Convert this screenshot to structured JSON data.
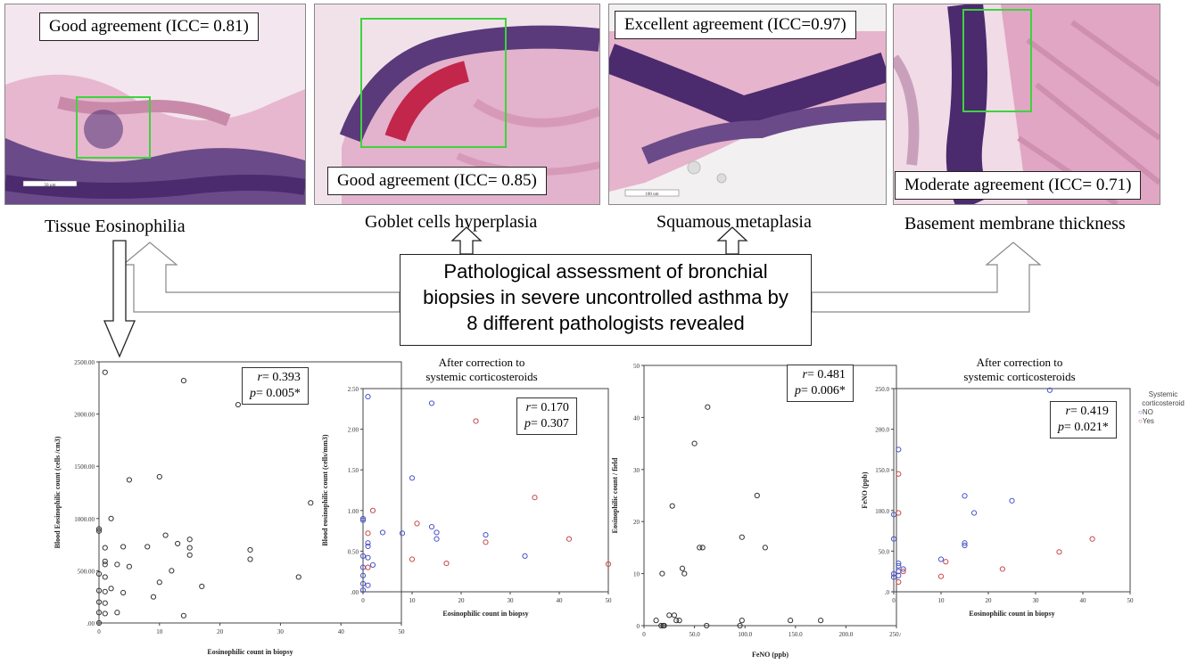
{
  "panels": [
    {
      "icc_label": "Good agreement (ICC= 0.81)",
      "caption": "Tissue Eosinophilia",
      "scale_label": "50 µm"
    },
    {
      "icc_label": "Good agreement (ICC= 0.85)",
      "caption": "Goblet cells hyperplasia"
    },
    {
      "icc_label": "Excellent agreement (ICC=0.97)",
      "caption": "Squamous metaplasia",
      "scale_label": "100 um"
    },
    {
      "icc_label": "Moderate agreement (ICC= 0.71)",
      "caption": "Basement membrane thickness"
    }
  ],
  "center_box": {
    "lines": [
      "Pathological assessment of bronchial",
      "biopsies in severe uncontrolled asthma by",
      "8 different pathologists revealed"
    ]
  },
  "plot1": {
    "stats": {
      "r_label": "r",
      "r_value": "= 0.393",
      "p_label": "p",
      "p_value": "= 0.005*"
    }
  },
  "plot2": {
    "title_lines": [
      "After correction to",
      "systemic corticosteroids"
    ],
    "stats": {
      "r_label": "r",
      "r_value": "= 0.170",
      "p_label": "p",
      "p_value": "= 0.307"
    }
  },
  "plot3": {
    "stats": {
      "r_label": "r",
      "r_value": "= 0.481",
      "p_label": "p",
      "p_value": "= 0.006*"
    }
  },
  "plot4": {
    "title_lines": [
      "After correction to",
      "systemic corticosteroids"
    ],
    "stats": {
      "r_label": "r",
      "r_value": "= 0.419",
      "p_label": "p",
      "p_value": "= 0.021*"
    },
    "legend": {
      "title_lines": [
        "Systemic",
        "corticosteroid"
      ],
      "items": [
        "NO",
        "Yes"
      ]
    }
  },
  "colors": {
    "frame_green": "#3dd43d",
    "series_no": "#4a55c8",
    "series_yes": "#c84a4a",
    "tissue_pink": "#e7b7cf",
    "nuclei_purple": "#4b2a6e"
  },
  "chart_data": [
    {
      "type": "scatter",
      "xlabel": "Eosinophilic count in biopsy",
      "ylabel": "Blood Eosinophilic count (cells /cm3)",
      "xlim": [
        0,
        50
      ],
      "ylim": [
        0,
        2500
      ],
      "xticks": [
        "0",
        "10",
        "20",
        "30",
        "40",
        "50"
      ],
      "yticks": [
        ".00",
        "500.00",
        "1000.00",
        "1500.00",
        "2000.00",
        "2500.00"
      ],
      "series": [
        {
          "values": [
            [
              1,
              2400
            ],
            [
              14,
              2320
            ],
            [
              23,
              2090
            ],
            [
              5,
              1370
            ],
            [
              10,
              1400
            ],
            [
              35,
              1150
            ],
            [
              2,
              1000
            ],
            [
              0,
              900
            ],
            [
              0,
              880
            ],
            [
              4,
              730
            ],
            [
              8,
              730
            ],
            [
              11,
              840
            ],
            [
              15,
              800
            ],
            [
              15,
              720
            ],
            [
              25,
              700
            ],
            [
              1,
              720
            ],
            [
              1,
              590
            ],
            [
              1,
              560
            ],
            [
              3,
              560
            ],
            [
              5,
              540
            ],
            [
              13,
              760
            ],
            [
              15,
              650
            ],
            [
              25,
              610
            ],
            [
              12,
              500
            ],
            [
              0,
              470
            ],
            [
              1,
              440
            ],
            [
              10,
              390
            ],
            [
              17,
              350
            ],
            [
              33,
              440
            ],
            [
              0,
              310
            ],
            [
              1,
              300
            ],
            [
              4,
              290
            ],
            [
              2,
              330
            ],
            [
              9,
              250
            ],
            [
              0,
              200
            ],
            [
              1,
              190
            ],
            [
              0,
              100
            ],
            [
              1,
              90
            ],
            [
              3,
              100
            ],
            [
              0,
              0
            ],
            [
              14,
              70
            ]
          ]
        }
      ]
    },
    {
      "type": "scatter",
      "xlabel": "Eosinophilic count in biopsy",
      "ylabel": "Blood eosinophilic count (cells/mm3)",
      "xlim": [
        0,
        50
      ],
      "ylim": [
        0,
        2.5
      ],
      "xticks": [
        "0",
        "10",
        "20",
        "30",
        "40",
        "50"
      ],
      "yticks": [
        ".00",
        "0.50",
        "1.00",
        "1.50",
        "2.00",
        "2.50"
      ],
      "series": [
        {
          "name": "NO",
          "values": [
            [
              1,
              2.4
            ],
            [
              14,
              2.32
            ],
            [
              10,
              1.4
            ],
            [
              0,
              0.9
            ],
            [
              0,
              0.88
            ],
            [
              4,
              0.73
            ],
            [
              8,
              0.72
            ],
            [
              14,
              0.8
            ],
            [
              15,
              0.73
            ],
            [
              15,
              0.65
            ],
            [
              25,
              0.7
            ],
            [
              1,
              0.6
            ],
            [
              1,
              0.56
            ],
            [
              0,
              0.44
            ],
            [
              1,
              0.42
            ],
            [
              33,
              0.44
            ],
            [
              0,
              0.3
            ],
            [
              0,
              0.2
            ],
            [
              0,
              0.1
            ],
            [
              1,
              0.08
            ],
            [
              2,
              0.33
            ],
            [
              0,
              0.02
            ]
          ]
        },
        {
          "name": "Yes",
          "values": [
            [
              23,
              2.1
            ],
            [
              35,
              1.16
            ],
            [
              2,
              1.0
            ],
            [
              11,
              0.84
            ],
            [
              42,
              0.65
            ],
            [
              25,
              0.61
            ],
            [
              10,
              0.4
            ],
            [
              17,
              0.35
            ],
            [
              1,
              0.3
            ],
            [
              50,
              0.34
            ],
            [
              1,
              0.72
            ]
          ]
        }
      ]
    },
    {
      "type": "scatter",
      "xlabel": "FeNO (ppb)",
      "ylabel": "Eosinophilic count / field",
      "xlim": [
        0,
        250
      ],
      "ylim": [
        0,
        50
      ],
      "xticks": [
        "0",
        "50.0",
        "100.0",
        "150.0",
        "200.0",
        "250.0"
      ],
      "yticks": [
        "0",
        "10",
        "20",
        "30",
        "40",
        "50"
      ],
      "series": [
        {
          "values": [
            [
              63,
              42
            ],
            [
              50,
              35
            ],
            [
              28,
              23
            ],
            [
              112,
              25
            ],
            [
              55,
              15
            ],
            [
              58,
              15
            ],
            [
              120,
              15
            ],
            [
              97,
              17
            ],
            [
              18,
              10
            ],
            [
              38,
              11
            ],
            [
              40,
              10
            ],
            [
              12,
              1
            ],
            [
              17,
              0
            ],
            [
              19,
              0
            ],
            [
              20,
              0
            ],
            [
              25,
              2
            ],
            [
              30,
              2
            ],
            [
              32,
              1
            ],
            [
              35,
              1
            ],
            [
              62,
              0
            ],
            [
              95,
              0
            ],
            [
              97,
              1
            ],
            [
              145,
              1
            ],
            [
              175,
              1
            ]
          ]
        }
      ]
    },
    {
      "type": "scatter",
      "xlabel": "Eosinophilic count in biopsy",
      "ylabel": "FeNO (ppb)",
      "xlim": [
        0,
        50
      ],
      "ylim": [
        0,
        250
      ],
      "xticks": [
        "0",
        "10",
        "20",
        "30",
        "40",
        "50"
      ],
      "yticks": [
        ".0",
        "50.0",
        "100.0",
        "150.0",
        "200.0",
        "250.0"
      ],
      "series": [
        {
          "name": "NO",
          "values": [
            [
              33,
              248
            ],
            [
              1,
              175
            ],
            [
              15,
              118
            ],
            [
              25,
              112
            ],
            [
              17,
              97
            ],
            [
              0,
              95
            ],
            [
              0,
              65
            ],
            [
              15,
              60
            ],
            [
              15,
              57
            ],
            [
              1,
              35
            ],
            [
              1,
              32
            ],
            [
              2,
              28
            ],
            [
              10,
              40
            ],
            [
              0,
              22
            ],
            [
              0,
              18
            ],
            [
              1,
              25
            ],
            [
              1,
              20
            ]
          ]
        },
        {
          "name": "Yes",
          "values": [
            [
              1,
              145
            ],
            [
              1,
              97
            ],
            [
              42,
              65
            ],
            [
              35,
              49
            ],
            [
              23,
              28
            ],
            [
              10,
              19
            ],
            [
              11,
              37
            ],
            [
              2,
              25
            ],
            [
              1,
              12
            ]
          ]
        }
      ]
    }
  ]
}
